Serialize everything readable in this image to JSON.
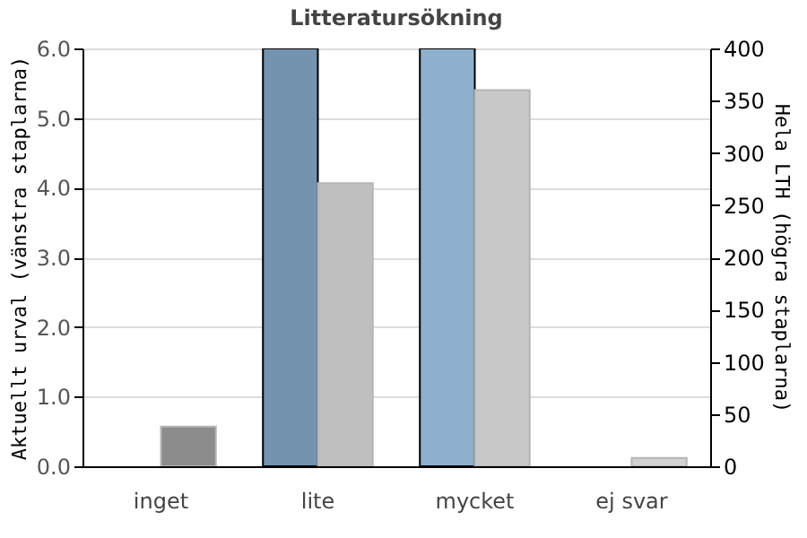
{
  "chart_data": {
    "type": "bar",
    "title": "Litteratursökning",
    "ylabel": "Aktuellt urval (vänstra staplarna)",
    "y2label": "Hela LTH (högra staplarna)",
    "categories": [
      "inget",
      "lite",
      "mycket",
      "ej svar"
    ],
    "series": [
      {
        "colors": [
          "#7393ae",
          "#7393ae",
          "#8fb0cc",
          "#8fb0cc"
        ],
        "values": [
          0,
          6,
          6,
          0
        ]
      },
      {
        "axis": "y2",
        "colors": [
          "#8c8c8c",
          "#bfbfbf",
          "#c8c8c8",
          "#d3d3d3"
        ],
        "values": [
          38,
          271,
          360,
          8
        ]
      }
    ],
    "ylim": [
      0,
      6
    ],
    "yticks": [
      {
        "value": 0,
        "label": "0.0"
      },
      {
        "value": 1,
        "label": "1.0"
      },
      {
        "value": 2,
        "label": "2.0"
      },
      {
        "value": 3,
        "label": "3.0"
      },
      {
        "value": 4,
        "label": "4.0"
      },
      {
        "value": 5,
        "label": "5.0"
      },
      {
        "value": 6,
        "label": "6.0"
      }
    ],
    "y2lim": [
      0,
      400
    ],
    "y2ticks": [
      0,
      50,
      100,
      150,
      200,
      250,
      300,
      350,
      400
    ],
    "grid": "y"
  }
}
